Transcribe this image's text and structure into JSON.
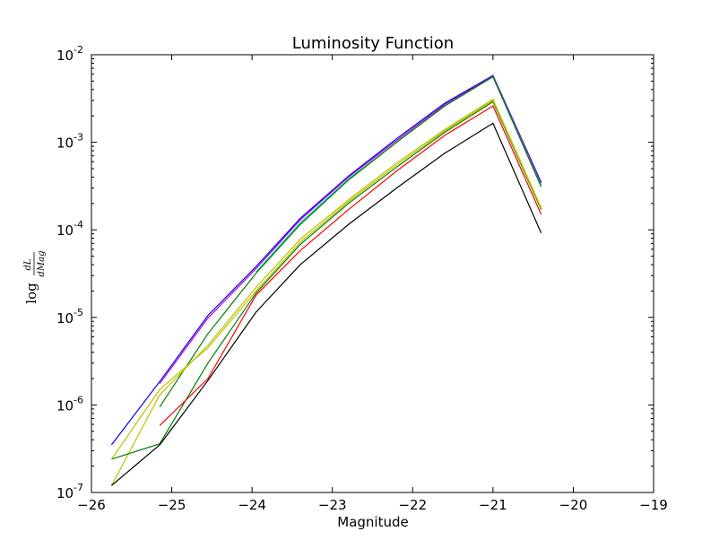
{
  "chart_data": {
    "type": "line",
    "title": "Luminosity Function",
    "xlabel": "Magnitude",
    "ylabel": "log dL/dMag",
    "ylabel_parts": {
      "prefix": "log",
      "numerator": "dL",
      "denominator": "dMag"
    },
    "xlim": [
      -26,
      -19
    ],
    "ylim": [
      1e-07,
      0.01
    ],
    "yscale": "log",
    "grid": false,
    "x_ticks": [
      -26,
      -25,
      -24,
      -23,
      -22,
      -21,
      -20,
      -19
    ],
    "x_tick_labels": [
      "−26",
      "−25",
      "−24",
      "−23",
      "−22",
      "−21",
      "−20",
      "−19"
    ],
    "y_ticks": [
      1e-07,
      1e-06,
      1e-05,
      0.0001,
      0.001,
      0.01
    ],
    "y_tick_labels": [
      {
        "base": "10",
        "exp": "-7"
      },
      {
        "base": "10",
        "exp": "-6"
      },
      {
        "base": "10",
        "exp": "-5"
      },
      {
        "base": "10",
        "exp": "-4"
      },
      {
        "base": "10",
        "exp": "-3"
      },
      {
        "base": "10",
        "exp": "-2"
      }
    ],
    "series": [
      {
        "color": "#0000ff",
        "x": [
          -25.75,
          -25.15,
          -24.55,
          -23.95,
          -23.4,
          -22.8,
          -22.2,
          -21.6,
          -21.0,
          -20.4
        ],
        "y": [
          3.5e-07,
          1.85e-06,
          1.05e-05,
          3.8e-05,
          0.000135,
          0.00041,
          0.0011,
          0.0028,
          0.0058,
          0.00035
        ]
      },
      {
        "color": "#bf00bf",
        "x": [
          -25.15,
          -24.55,
          -23.95,
          -23.4,
          -22.8,
          -22.2,
          -21.6,
          -21.0,
          -20.4
        ],
        "y": [
          1.75e-06,
          9.8e-06,
          3.6e-05,
          0.00013,
          0.0004,
          0.00105,
          0.0027,
          0.0057,
          0.00034
        ]
      },
      {
        "color": "#00bfbf",
        "x": [
          -23.95,
          -23.4,
          -22.8,
          -22.2,
          -21.6,
          -21.0,
          -20.4
        ],
        "y": [
          3.3e-05,
          0.00012,
          0.00038,
          0.001,
          0.0026,
          0.0056,
          0.00032
        ]
      },
      {
        "color": "#008000",
        "x": [
          -25.15,
          -24.55,
          -23.95,
          -23.4,
          -22.8,
          -22.2,
          -21.6,
          -21.0,
          -20.4
        ],
        "y": [
          9.5e-07,
          6.5e-06,
          3.2e-05,
          0.000115,
          0.00037,
          0.001,
          0.0026,
          0.0056,
          0.00031
        ]
      },
      {
        "color": "#bfbf00",
        "x": [
          -25.75,
          -25.15,
          -24.55,
          -23.95,
          -23.4,
          -22.8,
          -22.2,
          -21.6,
          -21.0,
          -20.4
        ],
        "y": [
          1.2e-07,
          1.3e-06,
          4.8e-06,
          2.2e-05,
          7.8e-05,
          0.00022,
          0.00058,
          0.0014,
          0.0031,
          0.00018
        ]
      },
      {
        "color": "#008000",
        "x": [
          -25.75,
          -25.15,
          -24.55,
          -23.95,
          -23.4,
          -22.8,
          -22.2,
          -21.6,
          -21.0,
          -20.4
        ],
        "y": [
          2.4e-07,
          3.6e-07,
          3e-06,
          1.9e-05,
          6.8e-05,
          0.0002,
          0.00052,
          0.0013,
          0.0029,
          0.00017
        ]
      },
      {
        "color": "#bfbf00",
        "x": [
          -25.75,
          -25.15,
          -24.55,
          -23.95,
          -23.4,
          -22.8,
          -22.2,
          -21.6,
          -21.0,
          -20.4
        ],
        "y": [
          2.4e-07,
          1.5e-06,
          4.5e-06,
          2e-05,
          7.2e-05,
          0.00021,
          0.00055,
          0.00135,
          0.003,
          0.000175
        ]
      },
      {
        "color": "#ff0000",
        "x": [
          -25.15,
          -24.55,
          -23.95,
          -23.4,
          -22.8,
          -22.2,
          -21.6,
          -21.0,
          -20.4
        ],
        "y": [
          5.8e-07,
          2e-06,
          1.8e-05,
          5.8e-05,
          0.00017,
          0.00047,
          0.0012,
          0.0026,
          0.00015
        ]
      },
      {
        "color": "#000000",
        "x": [
          -25.75,
          -25.15,
          -24.55,
          -23.95,
          -23.4,
          -22.8,
          -22.2,
          -21.6,
          -21.0,
          -20.4
        ],
        "y": [
          1.2e-07,
          3.5e-07,
          1.9e-06,
          1.15e-05,
          4e-05,
          0.000115,
          0.0003,
          0.00075,
          0.00165,
          9.2e-05
        ]
      }
    ]
  }
}
